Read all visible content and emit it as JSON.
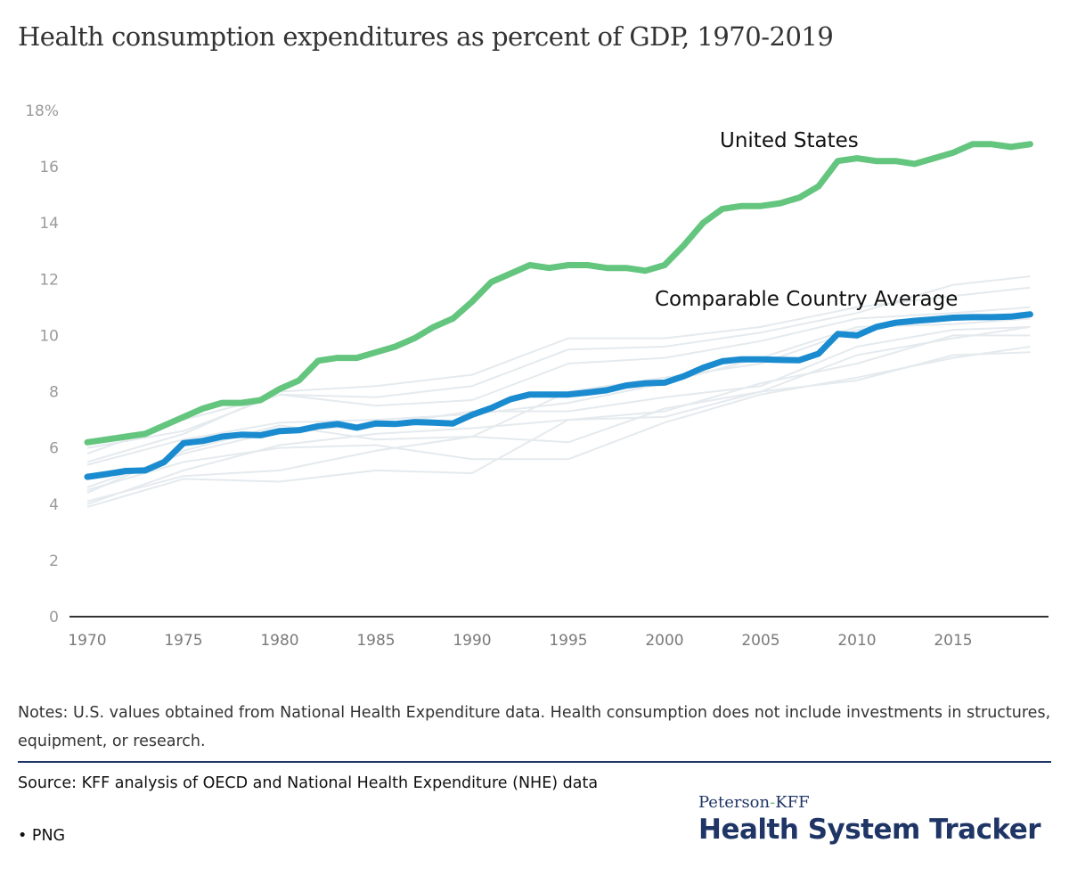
{
  "title": "Health consumption expenditures as percent of GDP, 1970-2019",
  "notes": "Notes: U.S. values obtained from National Health Expenditure data. Health consumption does not include investments in structures, equipment, or research.",
  "source": "Source: KFF analysis of OECD and National Health Expenditure (NHE) data",
  "download": {
    "bullet": "•",
    "label": "PNG"
  },
  "logo": {
    "top_left": "Peterson",
    "top_dash": "-",
    "top_right": "KFF",
    "main": "Health System Tracker"
  },
  "colors": {
    "us": "#63c57e",
    "average": "#1a8bcf",
    "countries": "#e4eaee",
    "axis": "#333333",
    "brand": "#1f3566"
  },
  "chart_data": {
    "type": "line",
    "title": "Health consumption expenditures as percent of GDP, 1970-2019",
    "xlabel": "",
    "ylabel": "",
    "xlim": [
      1970,
      2019
    ],
    "ylim": [
      0,
      18
    ],
    "y_ticks": [
      0,
      2,
      4,
      6,
      8,
      10,
      12,
      14,
      16,
      18
    ],
    "y_tick_labels": [
      "0",
      "2",
      "4",
      "6",
      "8",
      "10",
      "12",
      "14",
      "16",
      "18%"
    ],
    "x_ticks": [
      1970,
      1975,
      1980,
      1985,
      1990,
      1995,
      2000,
      2005,
      2010,
      2015
    ],
    "x_tick_labels": [
      "1970",
      "1975",
      "1980",
      "1985",
      "1990",
      "1995",
      "2000",
      "2005",
      "2010",
      "2015"
    ],
    "grid": false,
    "legend": "direct-labels",
    "x": [
      1970,
      1971,
      1972,
      1973,
      1974,
      1975,
      1976,
      1977,
      1978,
      1979,
      1980,
      1981,
      1982,
      1983,
      1984,
      1985,
      1986,
      1987,
      1988,
      1989,
      1990,
      1991,
      1992,
      1993,
      1994,
      1995,
      1996,
      1997,
      1998,
      1999,
      2000,
      2001,
      2002,
      2003,
      2004,
      2005,
      2006,
      2007,
      2008,
      2009,
      2010,
      2011,
      2012,
      2013,
      2014,
      2015,
      2016,
      2017,
      2018,
      2019
    ],
    "series": [
      {
        "name": "United States",
        "label": "United States",
        "emphasis": "us",
        "values": [
          6.2,
          6.3,
          6.4,
          6.5,
          6.8,
          7.1,
          7.4,
          7.6,
          7.6,
          7.7,
          8.1,
          8.4,
          9.1,
          9.2,
          9.2,
          9.4,
          9.6,
          9.9,
          10.3,
          10.6,
          11.2,
          11.9,
          12.2,
          12.5,
          12.4,
          12.5,
          12.5,
          12.4,
          12.4,
          12.3,
          12.5,
          13.2,
          14.0,
          14.5,
          14.6,
          14.6,
          14.7,
          14.9,
          15.3,
          16.2,
          16.3,
          16.2,
          16.2,
          16.1,
          16.3,
          16.5,
          16.8,
          16.8,
          16.7,
          16.8
        ]
      },
      {
        "name": "Comparable Country Average",
        "label": "Comparable Country Average",
        "emphasis": "average",
        "values": [
          4.97,
          5.07,
          5.18,
          5.2,
          5.5,
          6.17,
          6.25,
          6.4,
          6.47,
          6.45,
          6.6,
          6.63,
          6.77,
          6.85,
          6.72,
          6.87,
          6.85,
          6.92,
          6.9,
          6.87,
          7.18,
          7.42,
          7.73,
          7.9,
          7.9,
          7.9,
          7.97,
          8.05,
          8.22,
          8.3,
          8.32,
          8.55,
          8.85,
          9.08,
          9.15,
          9.15,
          9.13,
          9.12,
          9.35,
          10.05,
          10.0,
          10.3,
          10.45,
          10.52,
          10.57,
          10.63,
          10.65,
          10.65,
          10.67,
          10.75
        ]
      }
    ],
    "background_series_note": "Unlabeled comparable countries (approximate, read at 5-year intervals plus 2019)",
    "background_x": [
      1970,
      1975,
      1980,
      1985,
      1990,
      1995,
      2000,
      2005,
      2010,
      2015,
      2019
    ],
    "background_series": [
      [
        5.5,
        6.5,
        8.0,
        8.2,
        8.6,
        9.9,
        9.9,
        10.3,
        11.0,
        11.4,
        11.7
      ],
      [
        5.8,
        7.0,
        7.9,
        7.8,
        8.2,
        9.5,
        9.6,
        10.1,
        10.8,
        11.8,
        12.1
      ],
      [
        6.0,
        6.6,
        7.9,
        7.5,
        7.7,
        9.0,
        9.2,
        9.8,
        10.6,
        10.8,
        11.0
      ],
      [
        5.4,
        6.3,
        6.9,
        7.0,
        7.2,
        7.6,
        8.3,
        9.2,
        10.3,
        10.4,
        10.6
      ],
      [
        4.4,
        5.9,
        6.8,
        6.3,
        6.4,
        8.0,
        8.5,
        9.0,
        10.2,
        10.6,
        10.8
      ],
      [
        4.6,
        5.8,
        6.6,
        6.8,
        7.3,
        7.3,
        7.8,
        8.2,
        9.6,
        10.2,
        10.3
      ],
      [
        4.0,
        5.2,
        6.1,
        6.5,
        6.7,
        7.0,
        7.3,
        8.3,
        9.0,
        10.0,
        10.0
      ],
      [
        4.1,
        5.0,
        5.2,
        5.9,
        6.4,
        6.2,
        7.4,
        8.0,
        9.3,
        9.9,
        10.3
      ],
      [
        3.9,
        4.9,
        4.8,
        5.2,
        5.1,
        7.0,
        7.1,
        8.0,
        8.4,
        9.3,
        9.4
      ],
      [
        4.5,
        5.5,
        6.0,
        6.1,
        5.6,
        5.6,
        6.9,
        7.9,
        8.5,
        9.2,
        9.6
      ]
    ]
  }
}
